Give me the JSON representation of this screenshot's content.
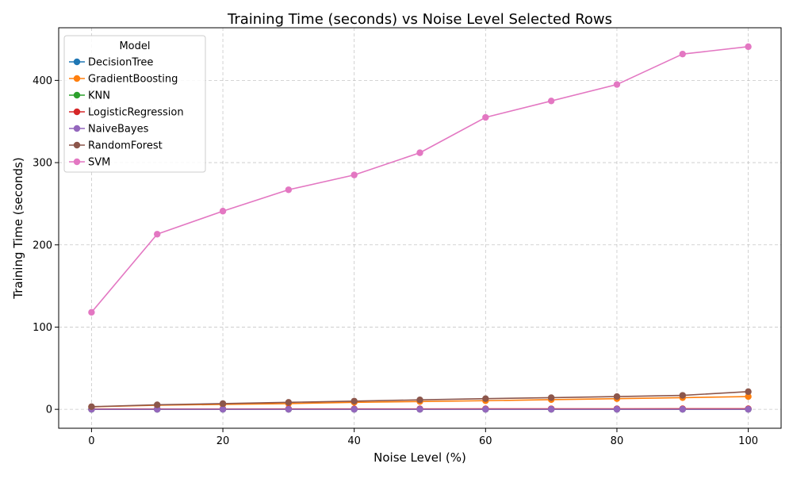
{
  "chart_data": {
    "type": "line",
    "title": "Training Time (seconds) vs Noise Level Selected Rows",
    "xlabel": "Noise Level (%)",
    "ylabel": "Training Time (seconds)",
    "xlim": [
      -5,
      105
    ],
    "ylim": [
      -23,
      464
    ],
    "xticks": [
      0,
      20,
      40,
      60,
      80,
      100
    ],
    "yticks": [
      0,
      100,
      200,
      300,
      400
    ],
    "grid": true,
    "legend": {
      "title": "Model",
      "placement": "top-left"
    },
    "x": [
      0,
      10,
      20,
      30,
      40,
      50,
      60,
      70,
      80,
      90,
      100
    ],
    "series": [
      {
        "name": "DecisionTree",
        "color": "#1f77b4",
        "values": [
          0.1,
          0.2,
          0.2,
          0.3,
          0.3,
          0.3,
          0.3,
          0.4,
          0.4,
          0.4,
          0.4
        ]
      },
      {
        "name": "GradientBoosting",
        "color": "#ff7f0e",
        "values": [
          3.0,
          5.0,
          6.0,
          7.0,
          8.5,
          9.5,
          10.5,
          11.8,
          13.0,
          14.2,
          15.5
        ]
      },
      {
        "name": "KNN",
        "color": "#2ca02c",
        "values": [
          0.02,
          0.02,
          0.02,
          0.02,
          0.02,
          0.02,
          0.02,
          0.02,
          0.02,
          0.02,
          0.02
        ]
      },
      {
        "name": "LogisticRegression",
        "color": "#d62728",
        "values": [
          0.3,
          0.4,
          0.4,
          0.5,
          0.5,
          0.5,
          0.6,
          0.6,
          0.6,
          0.7,
          0.7
        ]
      },
      {
        "name": "NaiveBayes",
        "color": "#9467bd",
        "values": [
          0.02,
          0.02,
          0.02,
          0.02,
          0.02,
          0.02,
          0.02,
          0.02,
          0.02,
          0.02,
          0.02
        ]
      },
      {
        "name": "RandomForest",
        "color": "#8c564b",
        "values": [
          3.2,
          5.5,
          7.0,
          8.5,
          10.0,
          11.5,
          13.0,
          14.2,
          15.5,
          17.0,
          21.5
        ]
      },
      {
        "name": "SVM",
        "color": "#e377c2",
        "values": [
          118,
          213,
          241,
          267,
          285,
          312,
          355,
          375,
          395,
          432,
          441
        ]
      }
    ]
  }
}
